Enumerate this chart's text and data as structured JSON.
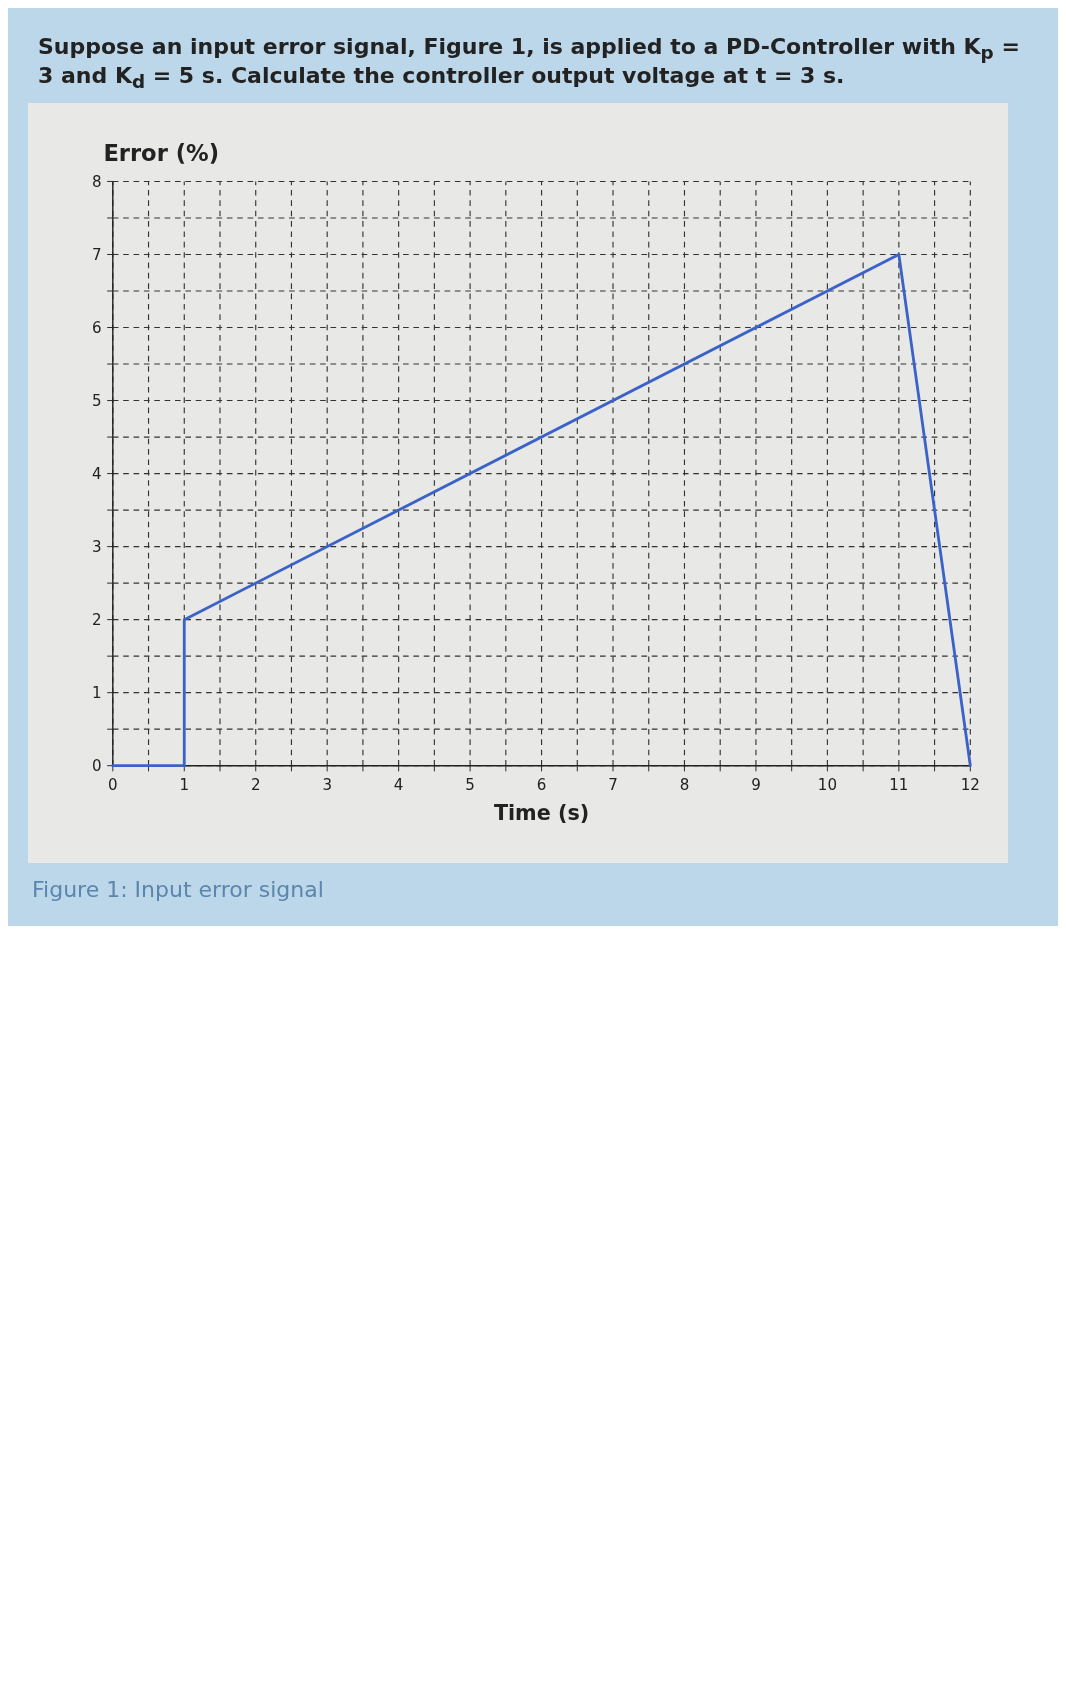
{
  "chart_data": {
    "type": "line",
    "title": "Suppose an input error signal, Figure 1, is applied to a PD-Controller with K$_{p}$ = 3 and K$_{d}$ = 5 s. Calculate the controller output voltage at t = 3 s.",
    "xlabel": "Time (s)",
    "ylabel": "Error (%)",
    "annotations": [
      "Figure 1: Input error signal"
    ],
    "x": [
      0,
      1,
      1,
      11,
      12
    ],
    "series": [
      {
        "color": "#3a62c8",
        "values": [
          0,
          0,
          2,
          7,
          0
        ]
      }
    ],
    "xlim": [
      0,
      12
    ],
    "ylim": [
      0,
      8
    ],
    "xticks": [
      0,
      {
        "value": 0.5,
        "label": null
      },
      1,
      {
        "value": 1.5,
        "label": null
      },
      2,
      {
        "value": 2.5,
        "label": null
      },
      3,
      {
        "value": 3.5,
        "label": null
      },
      4,
      {
        "value": 4.5,
        "label": null
      },
      5,
      {
        "value": 5.5,
        "label": null
      },
      6,
      {
        "value": 6.5,
        "label": null
      },
      7,
      {
        "value": 7.5,
        "label": null
      },
      8,
      {
        "value": 8.5,
        "label": null
      },
      9,
      {
        "value": 9.5,
        "label": null
      },
      10,
      {
        "value": 10.5,
        "label": null
      },
      11,
      {
        "value": 11.5,
        "label": null
      },
      12
    ],
    "yticks": [
      0,
      {
        "value": 0.5,
        "label": null
      },
      1,
      {
        "value": 1.5,
        "label": null
      },
      2,
      {
        "value": 2.5,
        "label": null
      },
      3,
      {
        "value": 3.5,
        "label": null
      },
      4,
      {
        "value": 4.5,
        "label": null
      },
      5,
      {
        "value": 5.5,
        "label": null
      },
      6,
      {
        "value": 6.5,
        "label": null
      },
      7,
      {
        "value": 7.5,
        "label": null
      },
      8
    ],
    "grid": true,
    "marker": "none",
    "line_style": "solid"
  }
}
